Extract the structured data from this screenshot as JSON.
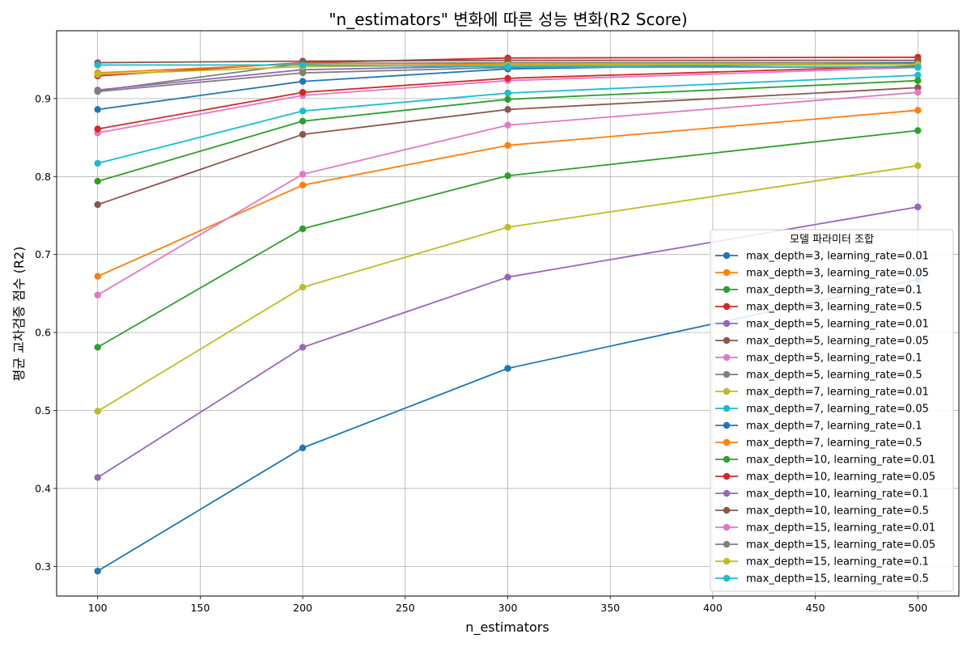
{
  "chart_data": {
    "type": "line",
    "title": "\"n_estimators\" 변화에 따른 성능 변화(R2 Score)",
    "xlabel": "n_estimators",
    "ylabel": "평균 교차검증 점수 (R2)",
    "xlim": [
      80,
      520
    ],
    "ylim": [
      0.262,
      0.987
    ],
    "xticks": [
      100,
      150,
      200,
      250,
      300,
      350,
      400,
      450,
      500
    ],
    "yticks": [
      0.3,
      0.4,
      0.5,
      0.6,
      0.7,
      0.8,
      0.9
    ],
    "ytick_labels": [
      "0.3",
      "0.4",
      "0.5",
      "0.6",
      "0.7",
      "0.8",
      "0.9"
    ],
    "grid": true,
    "legend_title": "모델 파라미터 조합",
    "legend_position": "lower-right",
    "x": [
      100,
      200,
      300,
      500
    ],
    "series": [
      {
        "name": "max_depth=3, learning_rate=0.01",
        "color": "#1f77b4",
        "values": [
          0.294,
          0.452,
          0.554,
          0.668
        ]
      },
      {
        "name": "max_depth=3, learning_rate=0.05",
        "color": "#ff7f0e",
        "values": [
          0.672,
          0.789,
          0.84,
          0.885
        ]
      },
      {
        "name": "max_depth=3, learning_rate=0.1",
        "color": "#2ca02c",
        "values": [
          0.581,
          0.733,
          0.801,
          0.859
        ]
      },
      {
        "name": "max_depth=3, learning_rate=0.5",
        "color": "#d62728",
        "values": [
          0.929,
          0.946,
          0.952,
          0.953
        ]
      },
      {
        "name": "max_depth=5, learning_rate=0.01",
        "color": "#9467bd",
        "values": [
          0.414,
          0.581,
          0.671,
          0.761
        ]
      },
      {
        "name": "max_depth=5, learning_rate=0.05",
        "color": "#8c564b",
        "values": [
          0.764,
          0.854,
          0.886,
          0.914
        ]
      },
      {
        "name": "max_depth=5, learning_rate=0.1",
        "color": "#e377c2",
        "values": [
          0.856,
          0.904,
          0.923,
          0.94
        ]
      },
      {
        "name": "max_depth=5, learning_rate=0.5",
        "color": "#7f7f7f",
        "values": [
          0.91,
          0.945,
          0.946,
          0.946
        ]
      },
      {
        "name": "max_depth=7, learning_rate=0.01",
        "color": "#bcbd22",
        "values": [
          0.499,
          0.658,
          0.735,
          0.814
        ]
      },
      {
        "name": "max_depth=7, learning_rate=0.05",
        "color": "#17becf",
        "values": [
          0.817,
          0.884,
          0.907,
          0.93
        ]
      },
      {
        "name": "max_depth=7, learning_rate=0.1",
        "color": "#1f77b4",
        "values": [
          0.886,
          0.922,
          0.938,
          0.946
        ]
      },
      {
        "name": "max_depth=7, learning_rate=0.5",
        "color": "#ff7f0e",
        "values": [
          0.933,
          0.945,
          0.944,
          0.944
        ]
      },
      {
        "name": "max_depth=10, learning_rate=0.01",
        "color": "#2ca02c",
        "values": [
          0.794,
          0.871,
          0.899,
          0.923
        ]
      },
      {
        "name": "max_depth=10, learning_rate=0.05",
        "color": "#d62728",
        "values": [
          0.861,
          0.908,
          0.926,
          0.942
        ]
      },
      {
        "name": "max_depth=10, learning_rate=0.1",
        "color": "#9467bd",
        "values": [
          0.911,
          0.937,
          0.942,
          0.944
        ]
      },
      {
        "name": "max_depth=10, learning_rate=0.5",
        "color": "#8c564b",
        "values": [
          0.946,
          0.948,
          0.949,
          0.949
        ]
      },
      {
        "name": "max_depth=15, learning_rate=0.01",
        "color": "#e377c2",
        "values": [
          0.648,
          0.803,
          0.866,
          0.908
        ]
      },
      {
        "name": "max_depth=15, learning_rate=0.05",
        "color": "#7f7f7f",
        "values": [
          0.909,
          0.933,
          0.94,
          0.941
        ]
      },
      {
        "name": "max_depth=15, learning_rate=0.1",
        "color": "#bcbd22",
        "values": [
          0.931,
          0.941,
          0.943,
          0.944
        ]
      },
      {
        "name": "max_depth=15, learning_rate=0.5",
        "color": "#17becf",
        "values": [
          0.943,
          0.943,
          0.941,
          0.94
        ]
      }
    ]
  }
}
